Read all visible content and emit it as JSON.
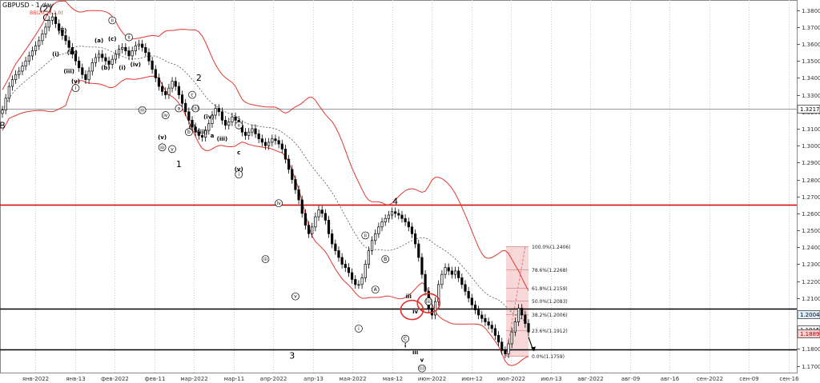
{
  "window": {
    "title": "GBPUSD - 1 day",
    "indicator": "BB(20,20,2.0)"
  },
  "colors": {
    "bull": "#ffffff",
    "bear": "#000000",
    "band": "#e0382f",
    "mid": "#555555",
    "hline_red": "#d00000",
    "hline_black": "#000000",
    "fib_zone": "#f4c9c9",
    "grid": "#cfcfcf",
    "price_tag": "#ffd0d0"
  },
  "chart_data": {
    "type": "candlestick",
    "title": "GBPUSD - 1 day",
    "x_tick_labels": [
      "янв-2022",
      "янв-13",
      "фев-2022",
      "фев-11",
      "мар-2022",
      "мар-11",
      "апр-2022",
      "апр-13",
      "мая-2022",
      "мая-12",
      "июн-2022",
      "июн-12",
      "июл-2022",
      "июл-13",
      "авг-2022",
      "авг-09",
      "авг-16",
      "сен-2022",
      "сен-09",
      "сен-16"
    ],
    "y_ticks": [
      1.38,
      1.37,
      1.36,
      1.35,
      1.34,
      1.33,
      1.32,
      1.31,
      1.3,
      1.29,
      1.28,
      1.27,
      1.26,
      1.25,
      1.24,
      1.23,
      1.22,
      1.21,
      1.2,
      1.19,
      1.18,
      1.17
    ],
    "ylim": [
      1.166,
      1.386
    ],
    "horizontal_lines": [
      {
        "price": 1.3217,
        "color": "gray",
        "label": "1.3217"
      },
      {
        "price": 1.265,
        "color": "red"
      },
      {
        "price": 1.2037,
        "color": "black"
      },
      {
        "price": 1.1796,
        "color": "black"
      }
    ],
    "price_labels": [
      {
        "price": 1.2004,
        "label": "1.2004",
        "style": "current"
      },
      {
        "price": 1.1915,
        "label": "1.1915",
        "style": "normal"
      },
      {
        "price": 1.1889,
        "label": "1.1889",
        "style": "red"
      }
    ],
    "fibonacci": {
      "start_label": "1.1759",
      "end_label": "1.2406",
      "levels": [
        {
          "ratio": 1.0,
          "label": "100.0%(1.2406)",
          "price": 1.2406
        },
        {
          "ratio": 0.786,
          "label": "78.6%(1.2268)",
          "price": 1.2268
        },
        {
          "ratio": 0.618,
          "label": "61.8%(1.2159)",
          "price": 1.2159
        },
        {
          "ratio": 0.5,
          "label": "50.0%(1.2083)",
          "price": 1.2083
        },
        {
          "ratio": 0.382,
          "label": "38.2%(1.2006)",
          "price": 1.2006
        },
        {
          "ratio": 0.236,
          "label": "23.6%(1.1912)",
          "price": 1.1912
        },
        {
          "ratio": 0.0,
          "label": "0.0%(1.1759)",
          "price": 1.1759
        }
      ]
    },
    "close": [
      1.321,
      1.328,
      1.335,
      1.339,
      1.342,
      1.344,
      1.347,
      1.35,
      1.353,
      1.356,
      1.359,
      1.362,
      1.366,
      1.37,
      1.374,
      1.376,
      1.372,
      1.368,
      1.365,
      1.362,
      1.358,
      1.354,
      1.35,
      1.346,
      1.342,
      1.339,
      1.344,
      1.349,
      1.352,
      1.354,
      1.352,
      1.35,
      1.348,
      1.351,
      1.354,
      1.357,
      1.358,
      1.356,
      1.353,
      1.356,
      1.359,
      1.36,
      1.358,
      1.355,
      1.35,
      1.345,
      1.34,
      1.335,
      1.332,
      1.33,
      1.334,
      1.338,
      1.335,
      1.33,
      1.325,
      1.32,
      1.315,
      1.311,
      1.308,
      1.306,
      1.305,
      1.309,
      1.313,
      1.318,
      1.322,
      1.32,
      1.315,
      1.312,
      1.314,
      1.317,
      1.315,
      1.312,
      1.308,
      1.306,
      1.308,
      1.31,
      1.307,
      1.304,
      1.302,
      1.3,
      1.302,
      1.304,
      1.303,
      1.301,
      1.298,
      1.292,
      1.286,
      1.28,
      1.274,
      1.268,
      1.26,
      1.253,
      1.248,
      1.252,
      1.258,
      1.262,
      1.26,
      1.256,
      1.248,
      1.242,
      1.238,
      1.234,
      1.23,
      1.228,
      1.225,
      1.221,
      1.218,
      1.218,
      1.222,
      1.23,
      1.238,
      1.244,
      1.248,
      1.252,
      1.255,
      1.257,
      1.259,
      1.261,
      1.26,
      1.259,
      1.257,
      1.255,
      1.252,
      1.248,
      1.242,
      1.234,
      1.224,
      1.214,
      1.204,
      1.2,
      1.208,
      1.218,
      1.224,
      1.228,
      1.226,
      1.224,
      1.226,
      1.222,
      1.218,
      1.214,
      1.21,
      1.206,
      1.203,
      1.2,
      1.198,
      1.196,
      1.194,
      1.192,
      1.188,
      1.184,
      1.179,
      1.177,
      1.183,
      1.19,
      1.196,
      1.204,
      1.2,
      1.195,
      1.19
    ],
    "waves": [
      {
        "text": "(2)",
        "x_index": 13,
        "price": 1.381,
        "size": "major"
      },
      {
        "text": "C",
        "x_index": 13,
        "price": 1.3755,
        "size": "major"
      },
      {
        "text": "B",
        "x_index": 0,
        "price": 1.312,
        "size": "major"
      },
      {
        "text": "2",
        "x_index": 59,
        "price": 1.34,
        "size": "major"
      },
      {
        "text": "1",
        "x_index": 53,
        "price": 1.289,
        "size": "major"
      },
      {
        "text": "3",
        "x_index": 87,
        "price": 1.176,
        "size": "major"
      },
      {
        "text": "4",
        "x_index": 118,
        "price": 1.267,
        "size": "major"
      },
      {
        "text": "ii",
        "x_index": 33,
        "price": 1.374,
        "size": "circled"
      },
      {
        "text": "(a)",
        "x_index": 29,
        "price": 1.362,
        "size": "minor"
      },
      {
        "text": "(c)",
        "x_index": 33,
        "price": 1.363,
        "size": "minor"
      },
      {
        "text": "(b)",
        "x_index": 31,
        "price": 1.346,
        "size": "minor"
      },
      {
        "text": "(i)",
        "x_index": 36,
        "price": 1.346,
        "size": "minor"
      },
      {
        "text": "ii",
        "x_index": 38,
        "price": 1.364,
        "size": "circled"
      },
      {
        "text": "(iv)",
        "x_index": 40,
        "price": 1.348,
        "size": "minor"
      },
      {
        "text": "iii",
        "x_index": 42,
        "price": 1.321,
        "size": "circled"
      },
      {
        "text": "(ii)",
        "x_index": 18,
        "price": 1.368,
        "size": "minor"
      },
      {
        "text": "(i)",
        "x_index": 16,
        "price": 1.354,
        "size": "minor"
      },
      {
        "text": "(iv)",
        "x_index": 21,
        "price": 1.355,
        "size": "minor"
      },
      {
        "text": "(iii)",
        "x_index": 20,
        "price": 1.344,
        "size": "minor"
      },
      {
        "text": "(v)",
        "x_index": 22,
        "price": 1.338,
        "size": "minor"
      },
      {
        "text": "i",
        "x_index": 22,
        "price": 1.334,
        "size": "circled"
      },
      {
        "text": "a",
        "x_index": 53,
        "price": 1.322,
        "size": "circled"
      },
      {
        "text": "c",
        "x_index": 57,
        "price": 1.33,
        "size": "circled"
      },
      {
        "text": "iv",
        "x_index": 49,
        "price": 1.318,
        "size": "circled"
      },
      {
        "text": "b",
        "x_index": 56,
        "price": 1.308,
        "size": "circled"
      },
      {
        "text": "(ii)",
        "x_index": 58,
        "price": 1.322,
        "size": "circled"
      },
      {
        "text": "(i)",
        "x_index": 57,
        "price": 1.311,
        "size": "minor"
      },
      {
        "text": "(iii)",
        "x_index": 60,
        "price": 1.308,
        "size": "minor"
      },
      {
        "text": "(iv)",
        "x_index": 62,
        "price": 1.317,
        "size": "minor"
      },
      {
        "text": "a",
        "x_index": 63,
        "price": 1.306,
        "size": "minor"
      },
      {
        "text": "(v)",
        "x_index": 48,
        "price": 1.305,
        "size": "minor"
      },
      {
        "text": "iii",
        "x_index": 48,
        "price": 1.299,
        "size": "circled"
      },
      {
        "text": "v",
        "x_index": 51,
        "price": 1.298,
        "size": "circled"
      },
      {
        "text": "ii",
        "x_index": 71,
        "price": 1.312,
        "size": "circled"
      },
      {
        "text": "(iii)",
        "x_index": 66,
        "price": 1.304,
        "size": "minor"
      },
      {
        "text": "c",
        "x_index": 71,
        "price": 1.296,
        "size": "minor"
      },
      {
        "text": "(v)",
        "x_index": 71,
        "price": 1.286,
        "size": "minor"
      },
      {
        "text": "i",
        "x_index": 71,
        "price": 1.283,
        "size": "circled"
      },
      {
        "text": "iv",
        "x_index": 83,
        "price": 1.266,
        "size": "circled"
      },
      {
        "text": "iii",
        "x_index": 79,
        "price": 1.233,
        "size": "circled"
      },
      {
        "text": "v",
        "x_index": 88,
        "price": 1.211,
        "size": "circled"
      },
      {
        "text": "ii",
        "x_index": 109,
        "price": 1.247,
        "size": "circled"
      },
      {
        "text": "B",
        "x_index": 115,
        "price": 1.233,
        "size": "circled"
      },
      {
        "text": "A",
        "x_index": 112,
        "price": 1.215,
        "size": "circled"
      },
      {
        "text": "i",
        "x_index": 107,
        "price": 1.192,
        "size": "circled"
      },
      {
        "text": "iii",
        "x_index": 122,
        "price": 1.211,
        "size": "minor"
      },
      {
        "text": "C",
        "x_index": 121,
        "price": 1.186,
        "size": "circled"
      },
      {
        "text": "i",
        "x_index": 121,
        "price": 1.182,
        "size": "minor"
      },
      {
        "text": "iv",
        "x_index": 124,
        "price": 1.202,
        "size": "minor"
      },
      {
        "text": "iii",
        "x_index": 124,
        "price": 1.178,
        "size": "minor"
      },
      {
        "text": "v",
        "x_index": 126,
        "price": 1.1735,
        "size": "minor"
      },
      {
        "text": "(ii)",
        "x_index": 128,
        "price": 1.208,
        "size": "circled"
      },
      {
        "text": "(i)",
        "x_index": 126,
        "price": 1.1685,
        "size": "circled"
      }
    ]
  }
}
